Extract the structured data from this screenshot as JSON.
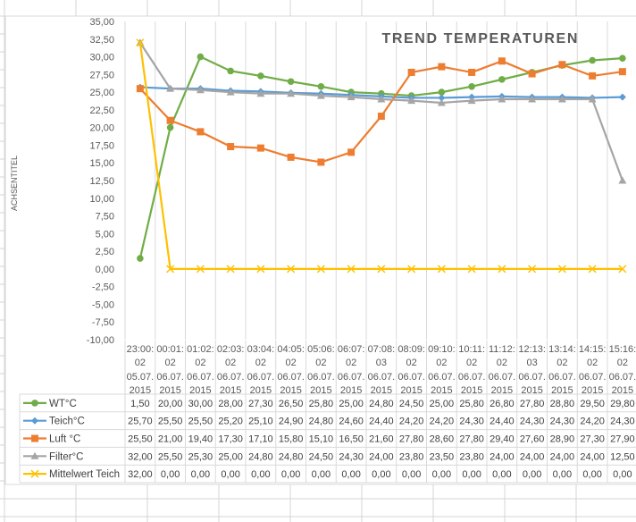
{
  "chart_data": {
    "type": "line",
    "title": "TREND TEMPERATUREN",
    "ylabel": "ACHSENTITEL",
    "xlabel": "",
    "ylim": [
      -10,
      35
    ],
    "ytick_step": 2.5,
    "yticks": [
      "35,00",
      "32,50",
      "30,00",
      "27,50",
      "25,00",
      "22,50",
      "20,00",
      "17,50",
      "15,00",
      "12,50",
      "10,00",
      "7,50",
      "5,00",
      "2,50",
      "0,00",
      "-2,50",
      "-5,00",
      "-7,50",
      "-10,00"
    ],
    "grid": "vertical",
    "legend": "data-table",
    "categories_time": [
      "23:00:",
      "00:01:",
      "01:02:",
      "02:03:",
      "03:04:",
      "04:05:",
      "05:06:",
      "06:07:",
      "07:08:",
      "08:09:",
      "09:10:",
      "10:11:",
      "11:12:",
      "12:13:",
      "13:14:",
      "14:15:",
      "15:16:"
    ],
    "categories_sec": [
      "02",
      "02",
      "02",
      "02",
      "02",
      "02",
      "02",
      "02",
      "03",
      "02",
      "02",
      "02",
      "02",
      "03",
      "02",
      "02",
      "02"
    ],
    "categories_date1": [
      "05.07.",
      "06.07.",
      "06.07.",
      "06.07.",
      "06.07.",
      "06.07.",
      "06.07.",
      "06.07.",
      "06.07.",
      "06.07.",
      "06.07.",
      "06.07.",
      "06.07.",
      "06.07.",
      "06.07.",
      "06.07.",
      "06.07."
    ],
    "categories_date2": [
      "2015",
      "2015",
      "2015",
      "2015",
      "2015",
      "2015",
      "2015",
      "2015",
      "2015",
      "2015",
      "2015",
      "2015",
      "2015",
      "2015",
      "2015",
      "2015",
      "2015"
    ],
    "series": [
      {
        "name": "WT°C",
        "color": "#70ad47",
        "marker": "circle",
        "values": [
          1.5,
          20,
          30,
          28,
          27.3,
          26.5,
          25.8,
          25,
          24.8,
          24.5,
          25,
          25.8,
          26.8,
          27.8,
          28.8,
          29.5,
          29.8
        ],
        "labels": [
          "1,50",
          "20,00",
          "30,00",
          "28,00",
          "27,30",
          "26,50",
          "25,80",
          "25,00",
          "24,80",
          "24,50",
          "25,00",
          "25,80",
          "26,80",
          "27,80",
          "28,80",
          "29,50",
          "29,80"
        ]
      },
      {
        "name": "Teich°C",
        "color": "#5b9bd5",
        "marker": "diamond",
        "values": [
          25.7,
          25.5,
          25.5,
          25.2,
          25.1,
          24.9,
          24.8,
          24.6,
          24.4,
          24.2,
          24.2,
          24.3,
          24.4,
          24.3,
          24.3,
          24.2,
          24.3
        ],
        "labels": [
          "25,70",
          "25,50",
          "25,50",
          "25,20",
          "25,10",
          "24,90",
          "24,80",
          "24,60",
          "24,40",
          "24,20",
          "24,20",
          "24,30",
          "24,40",
          "24,30",
          "24,30",
          "24,20",
          "24,30"
        ]
      },
      {
        "name": "Luft °C",
        "color": "#ed7d31",
        "marker": "square",
        "values": [
          25.5,
          21,
          19.4,
          17.3,
          17.1,
          15.8,
          15.1,
          16.5,
          21.6,
          27.8,
          28.6,
          27.8,
          29.4,
          27.6,
          28.9,
          27.3,
          27.9
        ],
        "labels": [
          "25,50",
          "21,00",
          "19,40",
          "17,30",
          "17,10",
          "15,80",
          "15,10",
          "16,50",
          "21,60",
          "27,80",
          "28,60",
          "27,80",
          "29,40",
          "27,60",
          "28,90",
          "27,30",
          "27,90"
        ]
      },
      {
        "name": "Filter°C",
        "color": "#a5a5a5",
        "marker": "triangle",
        "values": [
          32,
          25.5,
          25.3,
          25,
          24.8,
          24.8,
          24.5,
          24.3,
          24,
          23.8,
          23.5,
          23.8,
          24,
          24,
          24,
          24,
          12.5
        ],
        "labels": [
          "32,00",
          "25,50",
          "25,30",
          "25,00",
          "24,80",
          "24,80",
          "24,50",
          "24,30",
          "24,00",
          "23,80",
          "23,50",
          "23,80",
          "24,00",
          "24,00",
          "24,00",
          "24,00",
          "12,50"
        ]
      },
      {
        "name": "Mittelwert Teich",
        "color": "#ffc000",
        "marker": "x",
        "values": [
          32,
          0,
          0,
          0,
          0,
          0,
          0,
          0,
          0,
          0,
          0,
          0,
          0,
          0,
          0,
          0,
          0
        ],
        "labels": [
          "32,00",
          "0,00",
          "0,00",
          "0,00",
          "0,00",
          "0,00",
          "0,00",
          "0,00",
          "0,00",
          "0,00",
          "0,00",
          "0,00",
          "0,00",
          "0,00",
          "0,00",
          "0,00",
          "0,00"
        ]
      }
    ]
  }
}
